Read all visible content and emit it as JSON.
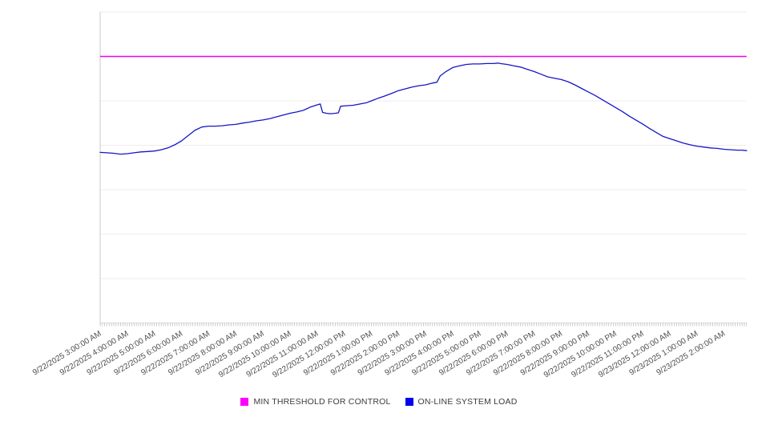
{
  "page": {
    "background": "#ffffff"
  },
  "colors": {
    "gridline": "#ededed",
    "axis_line": "#c9c9c9",
    "minor_tick": "#b8b8b8",
    "x_label_text": "#4d4d4d",
    "legend_text": "#3c3c3c",
    "threshold_magenta": "#ee00ee",
    "load_blue": "#1616c8"
  },
  "chart_data": {
    "type": "line",
    "title": "",
    "xlabel": "",
    "ylabel": "",
    "x_labels": [
      "9/22/2025 3:00:00 AM",
      "9/22/2025 4:00:00 AM",
      "9/22/2025 5:00:00 AM",
      "9/22/2025 6:00:00 AM",
      "9/22/2025 7:00:00 AM",
      "9/22/2025 8:00:00 AM",
      "9/22/2025 9:00:00 AM",
      "9/22/2025 10:00:00 AM",
      "9/22/2025 11:00:00 AM",
      "9/22/2025 12:00:00 PM",
      "9/22/2025 1:00:00 PM",
      "9/22/2025 2:00:00 PM",
      "9/22/2025 3:00:00 PM",
      "9/22/2025 4:00:00 PM",
      "9/22/2025 5:00:00 PM",
      "9/22/2025 6:00:00 PM",
      "9/22/2025 7:00:00 PM",
      "9/22/2025 8:00:00 PM",
      "9/22/2025 9:00:00 PM",
      "9/22/2025 10:00:00 PM",
      "9/22/2025 11:00:00 PM",
      "9/23/2025 12:00:00 AM",
      "9/23/2025 1:00:00 AM",
      "9/23/2025 2:00:00 AM"
    ],
    "x_minor_tick_interval_minutes": 5,
    "x_span_minutes": 1430,
    "y_axis": {
      "tick_labels_visible": false,
      "ylim": [
        0,
        7
      ],
      "gridline_count": 8,
      "note": "no y-axis labels shown; values estimated in gridline units (1 unit = 1 gridline interval, 0 = bottom axis)"
    },
    "grid": true,
    "legend_position": "bottom-center",
    "series": [
      {
        "name": "MIN THRESHOLD FOR CONTROL",
        "kind": "constant-threshold",
        "color": "#ee00ee",
        "value": 6.0
      },
      {
        "name": "ON-LINE SYSTEM LOAD",
        "kind": "line",
        "color": "#1616c8",
        "t_minutes": [
          0,
          15,
          30,
          45,
          60,
          75,
          90,
          105,
          120,
          135,
          150,
          165,
          180,
          195,
          210,
          225,
          240,
          255,
          270,
          285,
          300,
          315,
          330,
          345,
          360,
          375,
          390,
          405,
          420,
          435,
          450,
          465,
          480,
          487,
          492,
          500,
          510,
          520,
          527,
          532,
          545,
          560,
          575,
          590,
          600,
          615,
          630,
          645,
          660,
          675,
          690,
          705,
          720,
          735,
          745,
          752,
          765,
          780,
          795,
          810,
          825,
          840,
          855,
          870,
          880,
          885,
          900,
          915,
          930,
          945,
          960,
          975,
          990,
          1005,
          1020,
          1035,
          1050,
          1065,
          1080,
          1095,
          1110,
          1125,
          1140,
          1155,
          1170,
          1185,
          1200,
          1215,
          1230,
          1245,
          1260,
          1275,
          1290,
          1305,
          1320,
          1335,
          1350,
          1365,
          1380,
          1395,
          1410,
          1420,
          1430
        ],
        "values": [
          3.84,
          3.83,
          3.82,
          3.8,
          3.81,
          3.83,
          3.85,
          3.86,
          3.87,
          3.9,
          3.94,
          4.01,
          4.1,
          4.22,
          4.34,
          4.41,
          4.43,
          4.43,
          4.44,
          4.46,
          4.47,
          4.5,
          4.52,
          4.55,
          4.57,
          4.6,
          4.64,
          4.68,
          4.72,
          4.75,
          4.79,
          4.86,
          4.91,
          4.93,
          4.74,
          4.72,
          4.71,
          4.72,
          4.73,
          4.88,
          4.89,
          4.9,
          4.93,
          4.96,
          5.0,
          5.06,
          5.11,
          5.17,
          5.23,
          5.27,
          5.31,
          5.34,
          5.36,
          5.4,
          5.42,
          5.56,
          5.66,
          5.75,
          5.79,
          5.82,
          5.83,
          5.83,
          5.84,
          5.84,
          5.85,
          5.84,
          5.82,
          5.79,
          5.76,
          5.71,
          5.66,
          5.6,
          5.54,
          5.51,
          5.48,
          5.43,
          5.36,
          5.28,
          5.2,
          5.12,
          5.03,
          4.94,
          4.85,
          4.76,
          4.66,
          4.57,
          4.48,
          4.38,
          4.29,
          4.2,
          4.15,
          4.1,
          4.05,
          4.01,
          3.98,
          3.96,
          3.94,
          3.93,
          3.91,
          3.9,
          3.89,
          3.89,
          3.88
        ]
      }
    ]
  },
  "legend": {
    "items": [
      {
        "label": "MIN THRESHOLD FOR CONTROL"
      },
      {
        "label": "ON-LINE SYSTEM LOAD"
      }
    ]
  }
}
